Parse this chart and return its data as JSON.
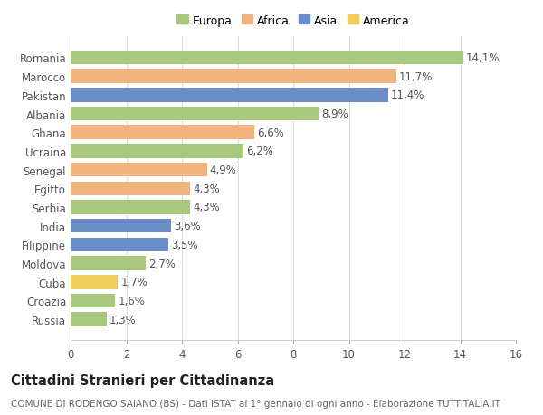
{
  "title": "Cittadini Stranieri per Cittadinanza",
  "subtitle": "COMUNE DI RODENGO SAIANO (BS) - Dati ISTAT al 1° gennaio di ogni anno - Elaborazione TUTTITALIA.IT",
  "categories": [
    "Romania",
    "Marocco",
    "Pakistan",
    "Albania",
    "Ghana",
    "Ucraina",
    "Senegal",
    "Egitto",
    "Serbia",
    "India",
    "Filippine",
    "Moldova",
    "Cuba",
    "Croazia",
    "Russia"
  ],
  "values": [
    14.1,
    11.7,
    11.4,
    8.9,
    6.6,
    6.2,
    4.9,
    4.3,
    4.3,
    3.6,
    3.5,
    2.7,
    1.7,
    1.6,
    1.3
  ],
  "labels": [
    "14,1%",
    "11,7%",
    "11,4%",
    "8,9%",
    "6,6%",
    "6,2%",
    "4,9%",
    "4,3%",
    "4,3%",
    "3,6%",
    "3,5%",
    "2,7%",
    "1,7%",
    "1,6%",
    "1,3%"
  ],
  "continents": [
    "Europa",
    "Africa",
    "Asia",
    "Europa",
    "Africa",
    "Europa",
    "Africa",
    "Africa",
    "Europa",
    "Asia",
    "Asia",
    "Europa",
    "America",
    "Europa",
    "Europa"
  ],
  "continent_colors": {
    "Europa": "#a8c87e",
    "Africa": "#f2b47e",
    "Asia": "#6b8ec8",
    "America": "#f0cc5a"
  },
  "legend_order": [
    "Europa",
    "Africa",
    "Asia",
    "America"
  ],
  "xlim": [
    0,
    16
  ],
  "xticks": [
    0,
    2,
    4,
    6,
    8,
    10,
    12,
    14,
    16
  ],
  "background_color": "#ffffff",
  "plot_bg_color": "#ffffff",
  "grid_color": "#dddddd",
  "bar_height": 0.75,
  "label_fontsize": 8.5,
  "tick_fontsize": 8.5,
  "title_fontsize": 10.5,
  "subtitle_fontsize": 7.5
}
